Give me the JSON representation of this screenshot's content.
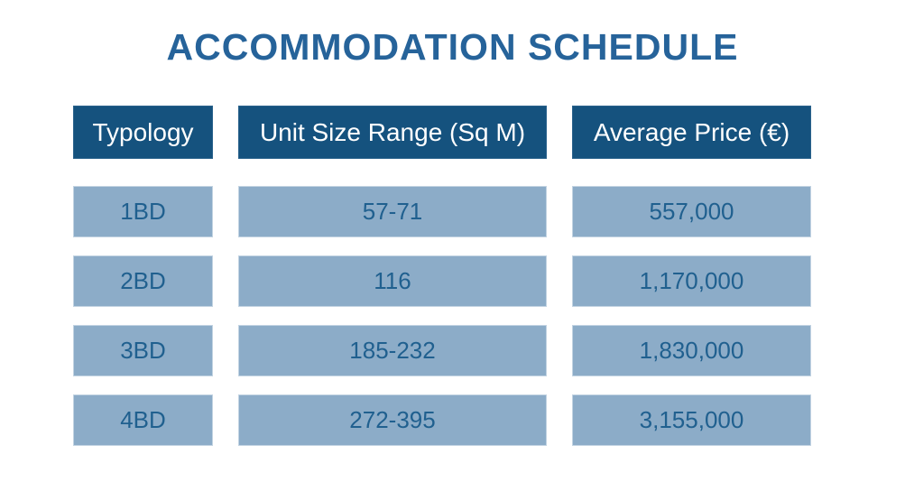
{
  "title": "ACCOMMODATION SCHEDULE",
  "colors": {
    "header_bg": "#15527e",
    "header_text": "#ffffff",
    "row_bg": "#8cacc8",
    "row_text": "#20608f",
    "title_text": "#26639a",
    "page_bg": "#ffffff"
  },
  "table": {
    "headers": [
      "Typology",
      "Unit Size Range (Sq M)",
      "Average Price (€)"
    ],
    "rows": [
      {
        "typology": "1BD",
        "unit_size_range": "57-71",
        "average_price": "557,000"
      },
      {
        "typology": "2BD",
        "unit_size_range": "116",
        "average_price": "1,170,000"
      },
      {
        "typology": "3BD",
        "unit_size_range": "185-232",
        "average_price": "1,830,000"
      },
      {
        "typology": "4BD",
        "unit_size_range": "272-395",
        "average_price": "3,155,000"
      }
    ]
  },
  "chart_data": {
    "type": "table",
    "title": "ACCOMMODATION SCHEDULE",
    "columns": [
      "Typology",
      "Unit Size Range (Sq M)",
      "Average Price (€)"
    ],
    "rows": [
      [
        "1BD",
        "57-71",
        "557,000"
      ],
      [
        "2BD",
        "116",
        "1,170,000"
      ],
      [
        "3BD",
        "185-232",
        "1,830,000"
      ],
      [
        "4BD",
        "272-395",
        "3,155,000"
      ]
    ],
    "numeric": {
      "unit_size_min_sqm": [
        57,
        116,
        185,
        272
      ],
      "unit_size_max_sqm": [
        71,
        116,
        232,
        395
      ],
      "average_price_eur": [
        557000,
        1170000,
        1830000,
        3155000
      ]
    }
  }
}
